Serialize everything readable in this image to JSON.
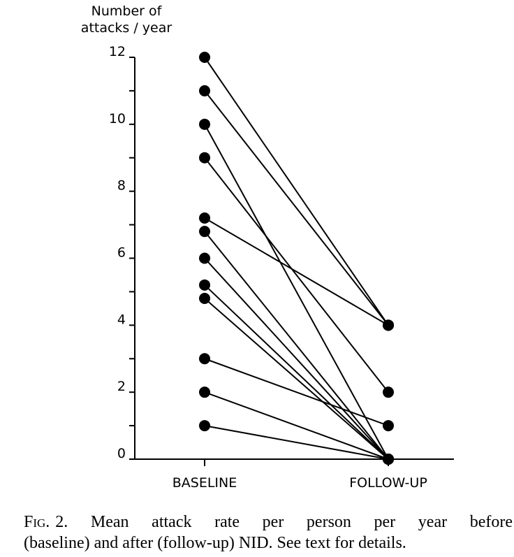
{
  "chart_data": {
    "type": "line",
    "ylabel_line1": "Number of",
    "ylabel_line2": "attacks / year",
    "categories": [
      "BASELINE",
      "FOLLOW-UP"
    ],
    "ylim": [
      0,
      12
    ],
    "yticks": [
      "0",
      "2",
      "4",
      "6",
      "8",
      "10",
      "12"
    ],
    "series": [
      {
        "values": [
          12,
          4
        ]
      },
      {
        "values": [
          11,
          4
        ]
      },
      {
        "values": [
          10,
          0
        ]
      },
      {
        "values": [
          9,
          2
        ]
      },
      {
        "values": [
          7.2,
          4
        ]
      },
      {
        "values": [
          6.8,
          0
        ]
      },
      {
        "values": [
          6,
          0
        ]
      },
      {
        "values": [
          5.2,
          0
        ]
      },
      {
        "values": [
          4.8,
          0
        ]
      },
      {
        "values": [
          3,
          1
        ]
      },
      {
        "values": [
          2,
          0
        ]
      },
      {
        "values": [
          1,
          0
        ]
      }
    ]
  },
  "caption": {
    "fig_label": "Fig.",
    "line1_rest": "2. Mean attack rate per person per year before",
    "line2": "(baseline) and after (follow-up) NID. See text for details."
  }
}
